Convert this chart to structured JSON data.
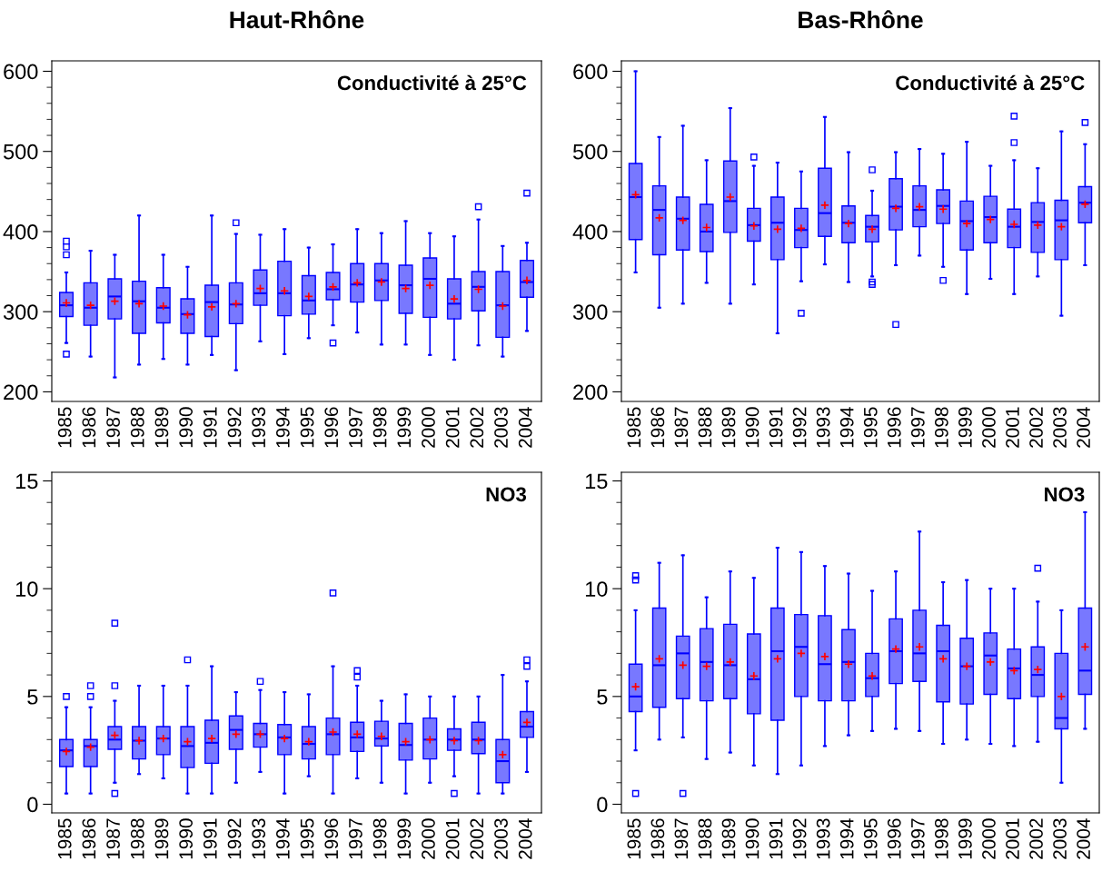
{
  "chart_data": [
    {
      "type": "box",
      "title": "Haut-Rhône",
      "annotations": [
        "Conductivité à 25°C"
      ],
      "categories": [
        "1985",
        "1986",
        "1987",
        "1988",
        "1989",
        "1990",
        "1991",
        "1992",
        "1993",
        "1994",
        "1995",
        "1996",
        "1997",
        "1998",
        "1999",
        "2000",
        "2001",
        "2002",
        "2003",
        "2004"
      ],
      "color": "#7878ff",
      "grid": false,
      "ylim": [
        188,
        613
      ],
      "yticks": [
        200,
        {
          "value": 220,
          "label": null
        },
        {
          "value": 240,
          "label": null
        },
        {
          "value": 260,
          "label": null
        },
        {
          "value": 280,
          "label": null
        },
        300,
        {
          "value": 320,
          "label": null
        },
        {
          "value": 340,
          "label": null
        },
        {
          "value": 360,
          "label": null
        },
        {
          "value": 380,
          "label": null
        },
        400,
        {
          "value": 420,
          "label": null
        },
        {
          "value": 440,
          "label": null
        },
        {
          "value": 460,
          "label": null
        },
        {
          "value": 480,
          "label": null
        },
        500,
        {
          "value": 520,
          "label": null
        },
        {
          "value": 540,
          "label": null
        },
        {
          "value": 560,
          "label": null
        },
        {
          "value": 580,
          "label": null
        },
        600
      ],
      "boxes": [
        {
          "low": 261,
          "q1": 294,
          "median": 308,
          "q3": 324,
          "high": 349,
          "mean": 311,
          "outliers": [
            388,
            381,
            371,
            247
          ]
        },
        {
          "low": 244,
          "q1": 283,
          "median": 305,
          "q3": 336,
          "high": 376,
          "mean": 308
        },
        {
          "low": 218,
          "q1": 291,
          "median": 319,
          "q3": 341,
          "high": 371,
          "mean": 313
        },
        {
          "low": 234,
          "q1": 273,
          "median": 313,
          "q3": 338,
          "high": 420,
          "mean": 310
        },
        {
          "low": 241,
          "q1": 286,
          "median": 305,
          "q3": 330,
          "high": 371,
          "mean": 307
        },
        {
          "low": 234,
          "q1": 273,
          "median": 297,
          "q3": 316,
          "high": 356,
          "mean": 296
        },
        {
          "low": 246,
          "q1": 269,
          "median": 312,
          "q3": 333,
          "high": 420,
          "mean": 306
        },
        {
          "low": 227,
          "q1": 285,
          "median": 309,
          "q3": 336,
          "high": 397,
          "mean": 310,
          "outliers": [
            411
          ]
        },
        {
          "low": 263,
          "q1": 308,
          "median": 323,
          "q3": 352,
          "high": 396,
          "mean": 329
        },
        {
          "low": 247,
          "q1": 295,
          "median": 323,
          "q3": 363,
          "high": 403,
          "mean": 326
        },
        {
          "low": 267,
          "q1": 297,
          "median": 314,
          "q3": 345,
          "high": 380,
          "mean": 319
        },
        {
          "low": 283,
          "q1": 315,
          "median": 328,
          "q3": 349,
          "high": 384,
          "mean": 331,
          "outliers": [
            261
          ]
        },
        {
          "low": 274,
          "q1": 312,
          "median": 334,
          "q3": 360,
          "high": 403,
          "mean": 336
        },
        {
          "low": 259,
          "q1": 314,
          "median": 339,
          "q3": 360,
          "high": 398,
          "mean": 337
        },
        {
          "low": 259,
          "q1": 298,
          "median": 333,
          "q3": 358,
          "high": 413,
          "mean": 329
        },
        {
          "low": 246,
          "q1": 293,
          "median": 341,
          "q3": 367,
          "high": 398,
          "mean": 333
        },
        {
          "low": 240,
          "q1": 291,
          "median": 310,
          "q3": 341,
          "high": 394,
          "mean": 316
        },
        {
          "low": 258,
          "q1": 301,
          "median": 331,
          "q3": 350,
          "high": 415,
          "mean": 328,
          "outliers": [
            431
          ]
        },
        {
          "low": 244,
          "q1": 268,
          "median": 308,
          "q3": 350,
          "high": 382,
          "mean": 307
        },
        {
          "low": 276,
          "q1": 318,
          "median": 337,
          "q3": 364,
          "high": 386,
          "mean": 339,
          "outliers": [
            448
          ]
        }
      ]
    },
    {
      "type": "box",
      "title": "Bas-Rhône",
      "annotations": [
        "Conductivité à 25°C"
      ],
      "categories": [
        "1985",
        "1986",
        "1987",
        "1988",
        "1989",
        "1990",
        "1991",
        "1992",
        "1993",
        "1994",
        "1995",
        "1996",
        "1997",
        "1998",
        "1999",
        "2000",
        "2001",
        "2002",
        "2003",
        "2004"
      ],
      "color": "#7878ff",
      "grid": false,
      "ylim": [
        188,
        613
      ],
      "yticks": [
        200,
        {
          "value": 220,
          "label": null
        },
        {
          "value": 240,
          "label": null
        },
        {
          "value": 260,
          "label": null
        },
        {
          "value": 280,
          "label": null
        },
        300,
        {
          "value": 320,
          "label": null
        },
        {
          "value": 340,
          "label": null
        },
        {
          "value": 360,
          "label": null
        },
        {
          "value": 380,
          "label": null
        },
        400,
        {
          "value": 420,
          "label": null
        },
        {
          "value": 440,
          "label": null
        },
        {
          "value": 460,
          "label": null
        },
        {
          "value": 480,
          "label": null
        },
        500,
        {
          "value": 520,
          "label": null
        },
        {
          "value": 540,
          "label": null
        },
        {
          "value": 560,
          "label": null
        },
        {
          "value": 580,
          "label": null
        },
        600
      ],
      "boxes": [
        {
          "low": 349,
          "q1": 390,
          "median": 443,
          "q3": 485,
          "high": 600,
          "mean": 446
        },
        {
          "low": 305,
          "q1": 371,
          "median": 427,
          "q3": 457,
          "high": 518,
          "mean": 417
        },
        {
          "low": 310,
          "q1": 377,
          "median": 416,
          "q3": 443,
          "high": 532,
          "mean": 414
        },
        {
          "low": 336,
          "q1": 375,
          "median": 400,
          "q3": 434,
          "high": 489,
          "mean": 405
        },
        {
          "low": 310,
          "q1": 399,
          "median": 438,
          "q3": 488,
          "high": 554,
          "mean": 443
        },
        {
          "low": 334,
          "q1": 388,
          "median": 408,
          "q3": 429,
          "high": 482,
          "mean": 407,
          "outliers": [
            493
          ]
        },
        {
          "low": 273,
          "q1": 365,
          "median": 411,
          "q3": 443,
          "high": 486,
          "mean": 403
        },
        {
          "low": 338,
          "q1": 380,
          "median": 402,
          "q3": 429,
          "high": 475,
          "mean": 404,
          "outliers": [
            298
          ]
        },
        {
          "low": 359,
          "q1": 394,
          "median": 423,
          "q3": 479,
          "high": 543,
          "mean": 433
        },
        {
          "low": 337,
          "q1": 386,
          "median": 411,
          "q3": 432,
          "high": 499,
          "mean": 410
        },
        {
          "low": 344,
          "q1": 387,
          "median": 406,
          "q3": 420,
          "high": 451,
          "mean": 403,
          "outliers": [
            477,
            337,
            334
          ]
        },
        {
          "low": 358,
          "q1": 402,
          "median": 431,
          "q3": 466,
          "high": 499,
          "mean": 429,
          "outliers": [
            284
          ]
        },
        {
          "low": 370,
          "q1": 406,
          "median": 427,
          "q3": 457,
          "high": 503,
          "mean": 431
        },
        {
          "low": 356,
          "q1": 410,
          "median": 432,
          "q3": 452,
          "high": 497,
          "mean": 428,
          "outliers": [
            339
          ]
        },
        {
          "low": 322,
          "q1": 377,
          "median": 413,
          "q3": 438,
          "high": 512,
          "mean": 410
        },
        {
          "low": 341,
          "q1": 386,
          "median": 418,
          "q3": 444,
          "high": 482,
          "mean": 415
        },
        {
          "low": 322,
          "q1": 380,
          "median": 406,
          "q3": 428,
          "high": 489,
          "mean": 409,
          "outliers": [
            544,
            511
          ]
        },
        {
          "low": 344,
          "q1": 374,
          "median": 412,
          "q3": 436,
          "high": 479,
          "mean": 408
        },
        {
          "low": 295,
          "q1": 365,
          "median": 414,
          "q3": 439,
          "high": 525,
          "mean": 406
        },
        {
          "low": 358,
          "q1": 411,
          "median": 436,
          "q3": 456,
          "high": 509,
          "mean": 434,
          "outliers": [
            536
          ]
        }
      ]
    },
    {
      "type": "box",
      "annotations": [
        "NO3"
      ],
      "categories": [
        "1985",
        "1986",
        "1987",
        "1988",
        "1989",
        "1990",
        "1991",
        "1992",
        "1993",
        "1994",
        "1995",
        "1996",
        "1997",
        "1998",
        "1999",
        "2000",
        "2001",
        "2002",
        "2003",
        "2004"
      ],
      "color": "#7878ff",
      "grid": false,
      "ylim": [
        -0.4,
        15.4
      ],
      "yticks": [
        0,
        {
          "value": 1,
          "label": null
        },
        {
          "value": 2,
          "label": null
        },
        {
          "value": 3,
          "label": null
        },
        {
          "value": 4,
          "label": null
        },
        5,
        {
          "value": 6,
          "label": null
        },
        {
          "value": 7,
          "label": null
        },
        {
          "value": 8,
          "label": null
        },
        {
          "value": 9,
          "label": null
        },
        10,
        {
          "value": 11,
          "label": null
        },
        {
          "value": 12,
          "label": null
        },
        {
          "value": 13,
          "label": null
        },
        {
          "value": 14,
          "label": null
        },
        15
      ],
      "boxes": [
        {
          "low": 0.5,
          "q1": 1.75,
          "median": 2.5,
          "q3": 3.0,
          "high": 4.5,
          "mean": 2.45,
          "outliers": [
            5.0
          ]
        },
        {
          "low": 0.5,
          "q1": 1.75,
          "median": 2.7,
          "q3": 3.0,
          "high": 4.5,
          "mean": 2.65,
          "outliers": [
            5.5,
            5.0
          ]
        },
        {
          "low": 1.0,
          "q1": 2.55,
          "median": 3.0,
          "q3": 3.6,
          "high": 4.8,
          "mean": 3.2,
          "outliers": [
            8.4,
            5.5,
            0.5
          ]
        },
        {
          "low": 1.4,
          "q1": 2.1,
          "median": 2.95,
          "q3": 3.6,
          "high": 5.5,
          "mean": 2.95
        },
        {
          "low": 1.2,
          "q1": 2.3,
          "median": 3.05,
          "q3": 3.6,
          "high": 5.5,
          "mean": 3.05
        },
        {
          "low": 0.5,
          "q1": 1.7,
          "median": 2.7,
          "q3": 3.6,
          "high": 5.5,
          "mean": 2.9,
          "outliers": [
            6.7
          ]
        },
        {
          "low": 0.5,
          "q1": 1.9,
          "median": 2.85,
          "q3": 3.9,
          "high": 6.4,
          "mean": 3.05
        },
        {
          "low": 1.0,
          "q1": 2.55,
          "median": 3.45,
          "q3": 4.1,
          "high": 5.2,
          "mean": 3.25
        },
        {
          "low": 1.5,
          "q1": 2.65,
          "median": 3.25,
          "q3": 3.75,
          "high": 5.3,
          "mean": 3.25,
          "outliers": [
            5.7
          ]
        },
        {
          "low": 0.5,
          "q1": 2.3,
          "median": 3.1,
          "q3": 3.7,
          "high": 5.2,
          "mean": 3.05
        },
        {
          "low": 1.3,
          "q1": 2.1,
          "median": 2.8,
          "q3": 3.6,
          "high": 5.1,
          "mean": 2.9
        },
        {
          "low": 0.5,
          "q1": 2.3,
          "median": 3.25,
          "q3": 4.0,
          "high": 6.4,
          "mean": 3.35,
          "outliers": [
            9.8
          ]
        },
        {
          "low": 1.2,
          "q1": 2.45,
          "median": 3.1,
          "q3": 3.8,
          "high": 5.5,
          "mean": 3.25,
          "outliers": [
            6.2,
            5.9
          ]
        },
        {
          "low": 1.0,
          "q1": 2.7,
          "median": 3.05,
          "q3": 3.85,
          "high": 4.8,
          "mean": 3.15
        },
        {
          "low": 0.5,
          "q1": 2.05,
          "median": 2.75,
          "q3": 3.75,
          "high": 5.1,
          "mean": 2.9
        },
        {
          "low": 1.0,
          "q1": 2.1,
          "median": 3.0,
          "q3": 4.0,
          "high": 5.0,
          "mean": 3.0
        },
        {
          "low": 1.3,
          "q1": 2.5,
          "median": 3.0,
          "q3": 3.5,
          "high": 5.0,
          "mean": 2.95,
          "outliers": [
            0.5
          ]
        },
        {
          "low": 0.5,
          "q1": 2.35,
          "median": 3.0,
          "q3": 3.8,
          "high": 5.0,
          "mean": 2.95
        },
        {
          "low": 0.5,
          "q1": 1.0,
          "median": 2.0,
          "q3": 3.0,
          "high": 6.0,
          "mean": 2.3
        },
        {
          "low": 1.5,
          "q1": 3.1,
          "median": 3.6,
          "q3": 4.3,
          "high": 5.7,
          "mean": 3.8,
          "outliers": [
            6.7,
            6.4
          ]
        }
      ]
    },
    {
      "type": "box",
      "annotations": [
        "NO3"
      ],
      "categories": [
        "1985",
        "1986",
        "1987",
        "1988",
        "1989",
        "1990",
        "1991",
        "1992",
        "1993",
        "1994",
        "1995",
        "1996",
        "1997",
        "1998",
        "1999",
        "2000",
        "2001",
        "2002",
        "2003",
        "2004"
      ],
      "color": "#7878ff",
      "grid": false,
      "ylim": [
        -0.4,
        15.4
      ],
      "yticks": [
        0,
        {
          "value": 1,
          "label": null
        },
        {
          "value": 2,
          "label": null
        },
        {
          "value": 3,
          "label": null
        },
        {
          "value": 4,
          "label": null
        },
        5,
        {
          "value": 6,
          "label": null
        },
        {
          "value": 7,
          "label": null
        },
        {
          "value": 8,
          "label": null
        },
        {
          "value": 9,
          "label": null
        },
        10,
        {
          "value": 11,
          "label": null
        },
        {
          "value": 12,
          "label": null
        },
        {
          "value": 13,
          "label": null
        },
        {
          "value": 14,
          "label": null
        },
        15
      ],
      "boxes": [
        {
          "low": 2.5,
          "q1": 4.3,
          "median": 5.0,
          "q3": 6.5,
          "high": 9.0,
          "mean": 5.45,
          "outliers": [
            10.6,
            10.4,
            0.5
          ]
        },
        {
          "low": 3.0,
          "q1": 4.5,
          "median": 6.45,
          "q3": 9.1,
          "high": 11.2,
          "mean": 6.75
        },
        {
          "low": 3.1,
          "q1": 4.9,
          "median": 7.0,
          "q3": 7.8,
          "high": 11.55,
          "mean": 6.45,
          "outliers": [
            0.5
          ]
        },
        {
          "low": 2.1,
          "q1": 4.8,
          "median": 6.6,
          "q3": 8.15,
          "high": 9.6,
          "mean": 6.4
        },
        {
          "low": 2.4,
          "q1": 4.9,
          "median": 6.45,
          "q3": 8.35,
          "high": 10.8,
          "mean": 6.6
        },
        {
          "low": 1.8,
          "q1": 4.2,
          "median": 5.8,
          "q3": 7.9,
          "high": 10.5,
          "mean": 5.95
        },
        {
          "low": 1.4,
          "q1": 3.9,
          "median": 7.1,
          "q3": 9.1,
          "high": 11.9,
          "mean": 6.75
        },
        {
          "low": 1.8,
          "q1": 5.0,
          "median": 7.3,
          "q3": 8.8,
          "high": 11.7,
          "mean": 7.0
        },
        {
          "low": 2.7,
          "q1": 4.8,
          "median": 6.5,
          "q3": 8.75,
          "high": 11.05,
          "mean": 6.85
        },
        {
          "low": 3.2,
          "q1": 4.8,
          "median": 6.6,
          "q3": 8.1,
          "high": 10.7,
          "mean": 6.5
        },
        {
          "low": 3.4,
          "q1": 5.0,
          "median": 5.85,
          "q3": 7.0,
          "high": 9.9,
          "mean": 5.95
        },
        {
          "low": 3.5,
          "q1": 5.6,
          "median": 7.1,
          "q3": 8.6,
          "high": 10.8,
          "mean": 7.2
        },
        {
          "low": 3.4,
          "q1": 5.7,
          "median": 7.0,
          "q3": 9.0,
          "high": 12.65,
          "mean": 7.3
        },
        {
          "low": 2.8,
          "q1": 4.75,
          "median": 7.1,
          "q3": 8.3,
          "high": 10.3,
          "mean": 6.75
        },
        {
          "low": 3.0,
          "q1": 4.65,
          "median": 6.4,
          "q3": 7.7,
          "high": 10.4,
          "mean": 6.4
        },
        {
          "low": 2.8,
          "q1": 5.1,
          "median": 6.9,
          "q3": 7.95,
          "high": 10.0,
          "mean": 6.6
        },
        {
          "low": 2.7,
          "q1": 4.9,
          "median": 6.3,
          "q3": 7.2,
          "high": 10.0,
          "mean": 6.2
        },
        {
          "low": 2.9,
          "q1": 5.0,
          "median": 6.0,
          "q3": 7.3,
          "high": 9.4,
          "mean": 6.25,
          "outliers": [
            10.95
          ]
        },
        {
          "low": 1.0,
          "q1": 3.5,
          "median": 4.0,
          "q3": 7.0,
          "high": 9.0,
          "mean": 5.0
        },
        {
          "low": 3.5,
          "q1": 5.1,
          "median": 6.2,
          "q3": 9.1,
          "high": 13.55,
          "mean": 7.3
        }
      ]
    }
  ]
}
